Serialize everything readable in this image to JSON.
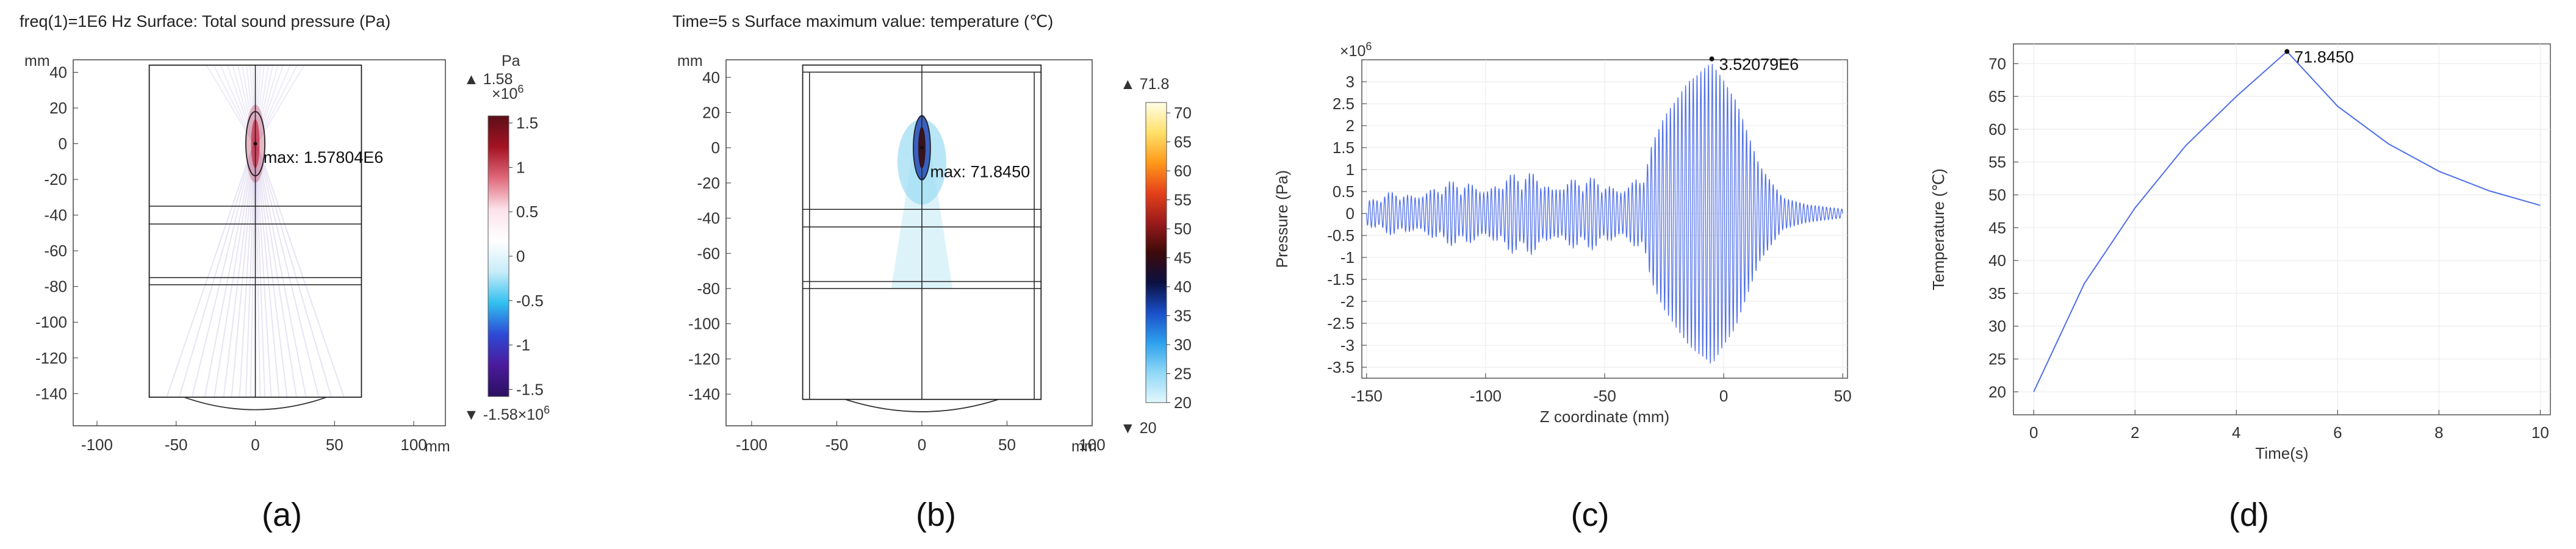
{
  "colors": {
    "axis": "#000000",
    "grid": "#e8e8e8",
    "curve": "#4f6fe8",
    "soundField": "#6e5ab8",
    "heatField": "#9adcf2"
  },
  "panels": [
    {
      "id": "a",
      "label": "(a)"
    },
    {
      "id": "b",
      "label": "(b)"
    },
    {
      "id": "c",
      "label": "(c)"
    },
    {
      "id": "d",
      "label": "(d)"
    }
  ],
  "chart_data": [
    {
      "id": "a",
      "type": "heatmap",
      "title": "freq(1)=1E6 Hz  Surface: Total sound pressure (Pa)",
      "units": {
        "x": "mm",
        "y": "mm"
      },
      "xlim": [
        -115,
        120
      ],
      "ylim": [
        -158,
        47
      ],
      "xticks": [
        -100,
        -50,
        0,
        50,
        100
      ],
      "yticks": [
        40,
        20,
        0,
        -20,
        -40,
        -60,
        -80,
        -100,
        -120,
        -140
      ],
      "domain_rect": {
        "x": [
          -67,
          67
        ],
        "y": [
          -142,
          44
        ]
      },
      "layer_lines": [
        -35,
        -45,
        -75,
        -79
      ],
      "focal_ellipse": {
        "cx": 0,
        "cy": 0,
        "rx": 6,
        "ry": 18
      },
      "transducer_arc": {
        "x0": -45,
        "x1": 45,
        "y": -142,
        "depth": 7
      },
      "annotation": {
        "text": "max: 1.57804E6",
        "x": 2,
        "y": -8
      },
      "colorbar": {
        "unit": "Pa",
        "scale": "×10⁶",
        "max_label": "▲ 1.58×10⁶",
        "min_label": "▼ -1.58×10⁶",
        "range": [
          -1.58,
          1.58
        ],
        "ticks": [
          "1.5",
          "1",
          "0.5",
          "0",
          "-0.5",
          "-1",
          "-1.5"
        ],
        "tick_values": [
          1.5,
          1,
          0.5,
          0,
          -0.5,
          -1,
          -1.5
        ],
        "scale_label_parts": {
          "base": "1.58",
          "mult": "×10",
          "exp": "6"
        },
        "min_label_parts": {
          "base": "-1.58",
          "mult": "×10",
          "exp": "6"
        },
        "stops": [
          "#5b0f18",
          "#a51322",
          "#e06a7b",
          "#fbe2ea",
          "#ffffff",
          "#c8ecf8",
          "#31c0f0",
          "#2d4ad6",
          "#4b1a9c",
          "#2a1060"
        ]
      }
    },
    {
      "id": "b",
      "type": "heatmap",
      "title": "Time=5 s  Surface maximum value: temperature (℃)",
      "units": {
        "x": "mm",
        "y": "mm"
      },
      "xlim": [
        -115,
        100
      ],
      "ylim": [
        -158,
        50
      ],
      "xticks": [
        -100,
        -50,
        0,
        50,
        100
      ],
      "yticks": [
        40,
        20,
        0,
        -20,
        -40,
        -60,
        -80,
        -100,
        -120,
        -140
      ],
      "domain_rect": {
        "x": [
          -70,
          70
        ],
        "y": [
          -143,
          47
        ]
      },
      "inner_rect": {
        "x": [
          -66,
          66
        ],
        "y": [
          -143,
          43
        ]
      },
      "layer_lines": [
        -35,
        -45,
        -76,
        -80
      ],
      "focal_ellipse": {
        "cx": 0,
        "cy": 0,
        "rx": 5,
        "ry": 18
      },
      "transducer_arc": {
        "x0": -45,
        "x1": 45,
        "y": -143,
        "depth": 7
      },
      "annotation": {
        "text": "max: 71.8450",
        "x": 2,
        "y": -14
      },
      "colorbar": {
        "max_label": "▲ 71.8",
        "min_label": "▼ 20",
        "range": [
          20,
          71.8
        ],
        "ticks": [
          "70",
          "65",
          "60",
          "55",
          "50",
          "45",
          "40",
          "35",
          "30",
          "25",
          "20"
        ],
        "tick_values": [
          70,
          65,
          60,
          55,
          50,
          45,
          40,
          35,
          30,
          25,
          20
        ],
        "stops": [
          "#fffde6",
          "#ffe16a",
          "#ff9a1a",
          "#e5411a",
          "#9b1b1b",
          "#3d0a0a",
          "#0b1040",
          "#1a4fc9",
          "#2da0ee",
          "#8fd8f6",
          "#e3f7fd"
        ]
      }
    },
    {
      "id": "c",
      "type": "line",
      "xlabel": "Z coordinate (mm)",
      "ylabel": "Pressure (Pa)",
      "yscale_label": "×10⁶",
      "yscale_parts": {
        "mult": "×10",
        "exp": "6"
      },
      "xlim": [
        -152,
        52
      ],
      "ylim": [
        -3.75,
        3.5
      ],
      "xticks": [
        -150,
        -100,
        -50,
        0,
        50
      ],
      "yticks": [
        3,
        2.5,
        2,
        1.5,
        1,
        0.5,
        0,
        -0.5,
        -1,
        -1.5,
        -2,
        -2.5,
        -3,
        -3.5
      ],
      "grid": true,
      "envelope": {
        "x": [
          -150,
          -140,
          -120,
          -100,
          -80,
          -60,
          -45,
          -35,
          -25,
          -15,
          -5,
          5,
          15,
          25,
          35,
          50
        ],
        "y": [
          0.3,
          0.5,
          0.7,
          0.85,
          1.0,
          0.85,
          0.8,
          1.0,
          2.2,
          3.0,
          3.45,
          2.6,
          1.1,
          0.35,
          0.2,
          0.1
        ]
      },
      "oscillation_period_mm": 1.6,
      "annotation": {
        "text": "3.52079E6",
        "x": -5,
        "y": 3.52
      }
    },
    {
      "id": "d",
      "type": "line",
      "xlabel": "Time(s)",
      "ylabel": "Temperature (℃)",
      "xlim": [
        -0.4,
        10.2
      ],
      "ylim": [
        16.5,
        73
      ],
      "xticks": [
        0,
        2,
        4,
        6,
        8,
        10
      ],
      "yticks": [
        20,
        25,
        30,
        35,
        40,
        45,
        50,
        55,
        60,
        65,
        70
      ],
      "grid": true,
      "series": [
        {
          "x": [
            0,
            1,
            2,
            3,
            4,
            5,
            6,
            7,
            8,
            9,
            10
          ],
          "y": [
            20,
            36.5,
            48,
            57.5,
            65,
            71.845,
            63.5,
            57.8,
            53.6,
            50.6,
            48.4
          ]
        }
      ],
      "annotation": {
        "text": "71.8450",
        "x": 5,
        "y": 71.845
      }
    }
  ]
}
